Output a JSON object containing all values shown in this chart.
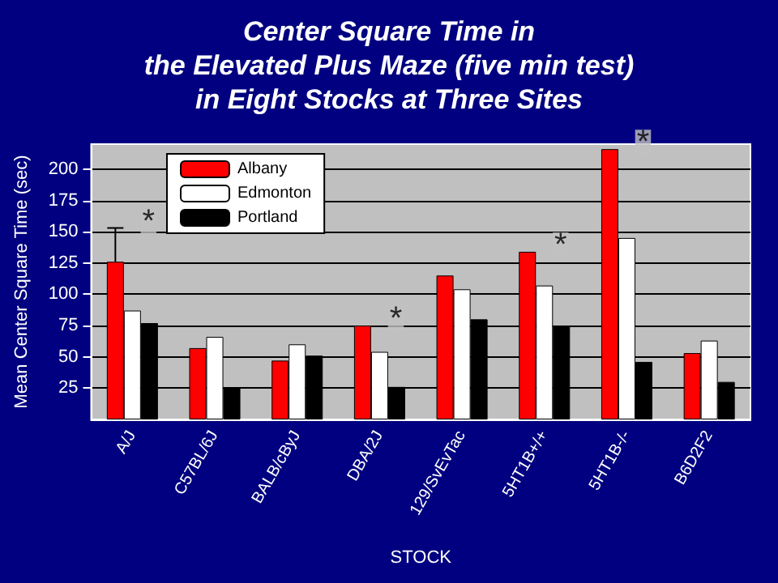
{
  "chart_data": {
    "type": "bar",
    "title": "Center Square Time in\nthe Elevated Plus Maze (five min test)\nin Eight Stocks at Three Sites",
    "xlabel": "STOCK",
    "ylabel": "Mean Center Square Time (sec)",
    "categories": [
      "A/J",
      "C57BL/6J",
      "BALB/cByJ",
      "DBA/2J",
      "129/SvEvTac",
      "5HT1B+/+",
      "5HT1B-/-",
      "B6D2F2"
    ],
    "series": [
      {
        "name": "Albany",
        "color": "#ff0000",
        "values": [
          126,
          57,
          47,
          75,
          115,
          134,
          216,
          53
        ],
        "errors": [
          [
            126,
            153
          ],
          null,
          null,
          null,
          null,
          null,
          null,
          null
        ]
      },
      {
        "name": "Edmonton",
        "color": "#ffffff",
        "values": [
          87,
          66,
          60,
          54,
          104,
          107,
          145,
          63
        ]
      },
      {
        "name": "Portland",
        "color": "#000000",
        "values": [
          77,
          25,
          51,
          26,
          80,
          75,
          46,
          30
        ]
      }
    ],
    "annotations": [
      {
        "text": "*",
        "x": "A/J",
        "y": 153
      },
      {
        "text": "*",
        "x": "DBA/2J",
        "y": 75
      },
      {
        "text": "*",
        "x": "5HT1B+/+",
        "y": 134
      },
      {
        "text": "*",
        "x": "5HT1B-/-",
        "y": 216
      }
    ],
    "ylim": [
      0,
      220
    ],
    "yticks": [
      25,
      50,
      75,
      100,
      125,
      150,
      175,
      200
    ],
    "grid": "y",
    "legend": "top left"
  }
}
